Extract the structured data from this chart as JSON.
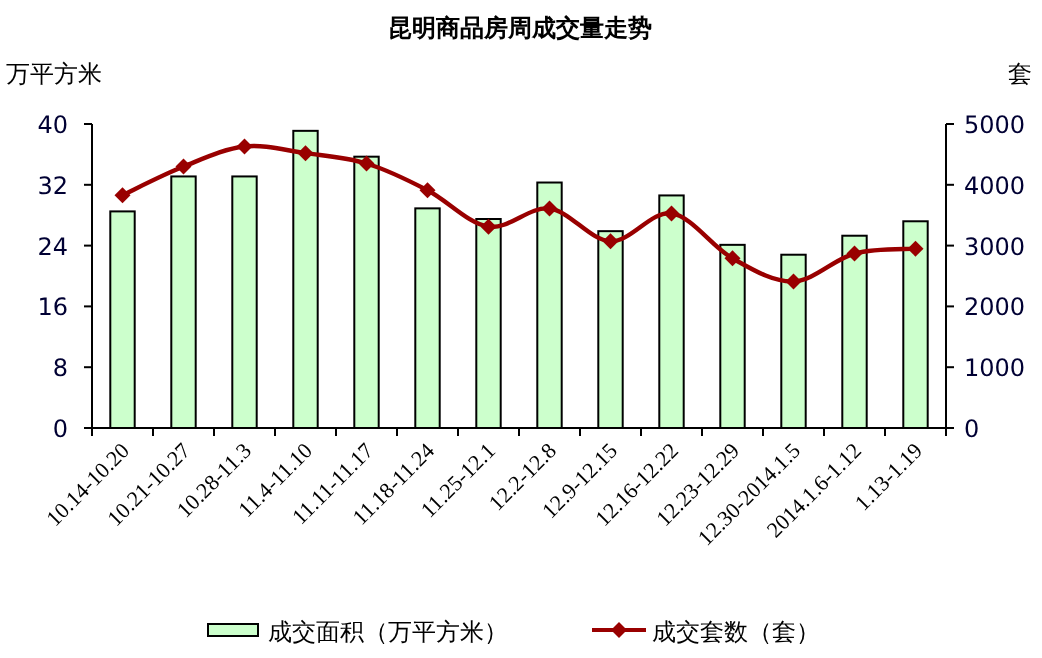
{
  "chart_data": {
    "type": "bar",
    "title": "昆明商品房周成交量走势",
    "ylabel": "万平方米",
    "y2label": "套",
    "categories": [
      "10.14-10.20",
      "10.21-10.27",
      "10.28-11.3",
      "11.4-11.10",
      "11.11-11.17",
      "11.18-11.24",
      "11.25-12.1",
      "12.2-12.8",
      "12.9-12.15",
      "12.16-12.22",
      "12.23-12.29",
      "12.30-2014.1.5",
      "2014.1.6-1.12",
      "1.13-1.19"
    ],
    "series": [
      {
        "name": "成交面积（万平方米）",
        "color": "#ccffcc",
        "values": [
          28.5,
          33.1,
          33.1,
          39.1,
          35.7,
          28.9,
          27.5,
          32.3,
          25.9,
          30.6,
          24.1,
          22.8,
          25.3,
          27.2
        ]
      },
      {
        "name": "成交套数（套）",
        "type": "line",
        "axis": "y2",
        "color": "#990000",
        "marker": "diamond",
        "values": [
          3830,
          4300,
          4630,
          4520,
          4350,
          3910,
          3310,
          3610,
          3070,
          3530,
          2790,
          2410,
          2870,
          2950
        ]
      }
    ],
    "ylim": [
      0,
      40
    ],
    "yticks": [
      0,
      8,
      16,
      24,
      32,
      40
    ],
    "y2lim": [
      0,
      5000
    ],
    "y2ticks": [
      0,
      1000,
      2000,
      3000,
      4000,
      5000
    ],
    "legend": "bottom",
    "grid": false
  }
}
